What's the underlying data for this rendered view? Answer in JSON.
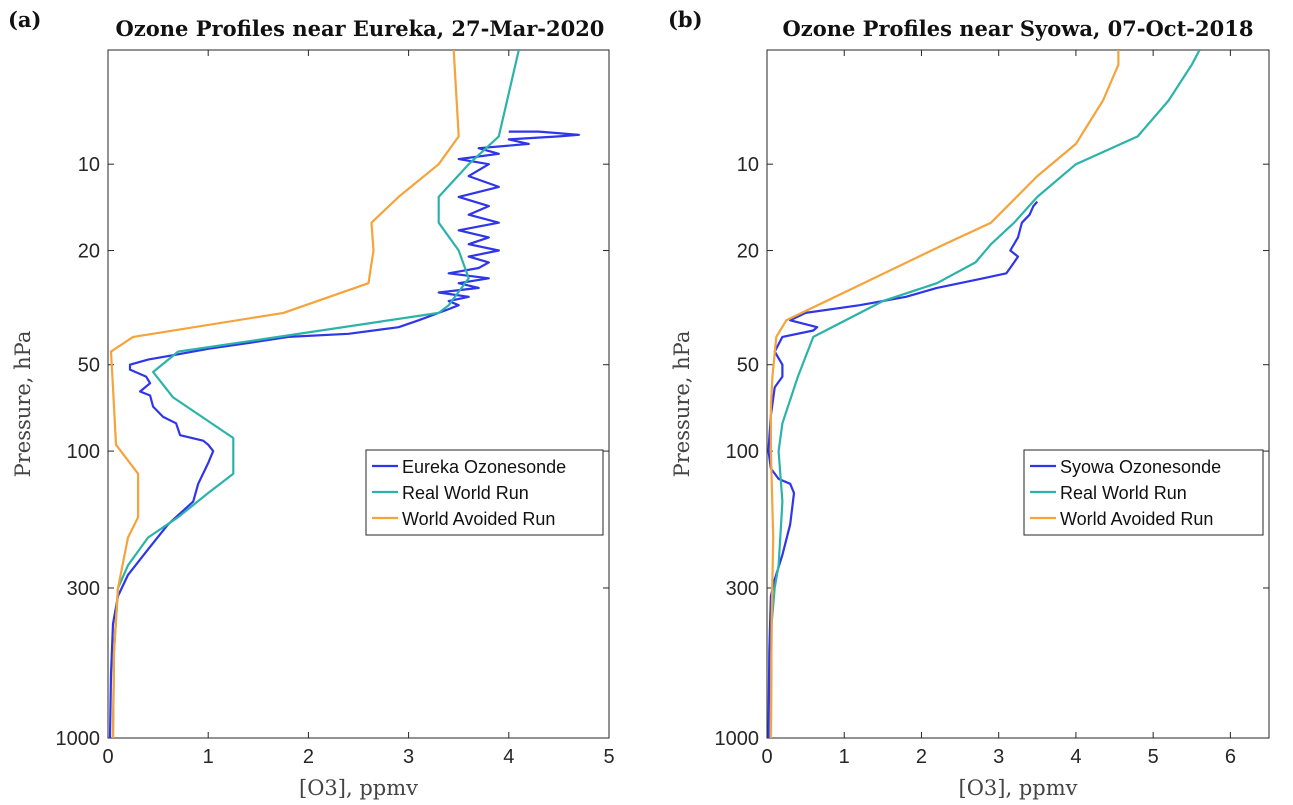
{
  "chart_data": [
    {
      "panel_label": "(a)",
      "type": "line",
      "title": "Ozone Profiles near Eureka, 27-Mar-2020",
      "xlabel": "[O3], ppmv",
      "ylabel": "Pressure, hPa",
      "xlim": [
        0,
        5
      ],
      "ylim": [
        4,
        1000
      ],
      "yscale": "log",
      "y_reversed": true,
      "xticks": [
        0,
        1,
        2,
        3,
        4,
        5
      ],
      "yticks": [
        10,
        20,
        50,
        100,
        300,
        1000
      ],
      "grid": false,
      "legend_position": "lower-right",
      "series": [
        {
          "name": "Eureka Ozonesonde",
          "color": "#2f35e8",
          "points": [
            [
              0.02,
              1000
            ],
            [
              0.03,
              600
            ],
            [
              0.05,
              400
            ],
            [
              0.1,
              320
            ],
            [
              0.2,
              270
            ],
            [
              0.4,
              220
            ],
            [
              0.6,
              180
            ],
            [
              0.85,
              150
            ],
            [
              0.9,
              130
            ],
            [
              1.0,
              110
            ],
            [
              1.05,
              100
            ],
            [
              1.0,
              95
            ],
            [
              0.95,
              92
            ],
            [
              0.72,
              88
            ],
            [
              0.68,
              80
            ],
            [
              0.55,
              76
            ],
            [
              0.45,
              70
            ],
            [
              0.42,
              64
            ],
            [
              0.32,
              62
            ],
            [
              0.42,
              58
            ],
            [
              0.38,
              55
            ],
            [
              0.22,
              52
            ],
            [
              0.22,
              50
            ],
            [
              0.4,
              48
            ],
            [
              0.7,
              46
            ],
            [
              1.0,
              44
            ],
            [
              1.4,
              42
            ],
            [
              1.8,
              40
            ],
            [
              2.4,
              39
            ],
            [
              2.9,
              37
            ],
            [
              3.1,
              35
            ],
            [
              3.3,
              33
            ],
            [
              3.4,
              32
            ],
            [
              3.5,
              31
            ],
            [
              3.4,
              30
            ],
            [
              3.6,
              29
            ],
            [
              3.3,
              28
            ],
            [
              3.7,
              27
            ],
            [
              3.5,
              26
            ],
            [
              3.8,
              25
            ],
            [
              3.4,
              24
            ],
            [
              3.7,
              23
            ],
            [
              3.8,
              22
            ],
            [
              3.6,
              21
            ],
            [
              3.9,
              20
            ],
            [
              3.6,
              19
            ],
            [
              3.8,
              18
            ],
            [
              3.5,
              17
            ],
            [
              3.9,
              16
            ],
            [
              3.6,
              15
            ],
            [
              3.8,
              14
            ],
            [
              3.5,
              13
            ],
            [
              3.9,
              12
            ],
            [
              3.6,
              11
            ],
            [
              3.8,
              10
            ],
            [
              3.5,
              9.6
            ],
            [
              3.9,
              9.2
            ],
            [
              3.7,
              8.8
            ],
            [
              4.2,
              8.5
            ],
            [
              4.0,
              8.2
            ],
            [
              4.5,
              8.0
            ],
            [
              4.7,
              7.9
            ],
            [
              4.3,
              7.7
            ],
            [
              4.0,
              7.7
            ]
          ]
        },
        {
          "name": "Real World Run",
          "color": "#2bb3aa",
          "points": [
            [
              0.05,
              1000
            ],
            [
              0.06,
              500
            ],
            [
              0.1,
              300
            ],
            [
              0.2,
              250
            ],
            [
              0.4,
              200
            ],
            [
              0.7,
              170
            ],
            [
              1.0,
              140
            ],
            [
              1.25,
              120
            ],
            [
              1.25,
              90
            ],
            [
              0.65,
              65
            ],
            [
              0.45,
              53
            ],
            [
              0.7,
              45
            ],
            [
              1.7,
              40
            ],
            [
              3.3,
              33
            ],
            [
              3.4,
              31
            ],
            [
              3.6,
              25
            ],
            [
              3.5,
              20
            ],
            [
              3.3,
              16
            ],
            [
              3.3,
              13
            ],
            [
              3.6,
              10
            ],
            [
              3.9,
              8
            ],
            [
              4.1,
              4
            ]
          ]
        },
        {
          "name": "World Avoided Run",
          "color": "#f5a33a",
          "points": [
            [
              0.05,
              1000
            ],
            [
              0.06,
              500
            ],
            [
              0.1,
              300
            ],
            [
              0.2,
              200
            ],
            [
              0.3,
              170
            ],
            [
              0.3,
              120
            ],
            [
              0.08,
              95
            ],
            [
              0.05,
              60
            ],
            [
              0.03,
              45
            ],
            [
              0.25,
              40
            ],
            [
              1.75,
              33
            ],
            [
              2.6,
              26
            ],
            [
              2.65,
              20
            ],
            [
              2.63,
              16
            ],
            [
              2.9,
              13
            ],
            [
              3.3,
              10
            ],
            [
              3.5,
              8
            ],
            [
              3.45,
              4
            ]
          ]
        }
      ]
    },
    {
      "panel_label": "(b)",
      "type": "line",
      "title": "Ozone Profiles near Syowa, 07-Oct-2018",
      "xlabel": "[O3], ppmv",
      "ylabel": "Pressure, hPa",
      "xlim": [
        0,
        6.5
      ],
      "ylim": [
        4,
        1000
      ],
      "yscale": "log",
      "y_reversed": true,
      "xticks": [
        0,
        1,
        2,
        3,
        4,
        5,
        6
      ],
      "yticks": [
        10,
        20,
        50,
        100,
        300,
        1000
      ],
      "grid": false,
      "legend_position": "lower-right",
      "series": [
        {
          "name": "Syowa Ozonesonde",
          "color": "#2f35e8",
          "points": [
            [
              0.02,
              1000
            ],
            [
              0.03,
              500
            ],
            [
              0.05,
              320
            ],
            [
              0.1,
              280
            ],
            [
              0.2,
              230
            ],
            [
              0.3,
              180
            ],
            [
              0.35,
              140
            ],
            [
              0.3,
              130
            ],
            [
              0.15,
              125
            ],
            [
              0.05,
              115
            ],
            [
              0.02,
              100
            ],
            [
              0.03,
              90
            ],
            [
              0.05,
              75
            ],
            [
              0.1,
              60
            ],
            [
              0.2,
              55
            ],
            [
              0.2,
              50
            ],
            [
              0.1,
              45
            ],
            [
              0.2,
              40
            ],
            [
              0.6,
              38
            ],
            [
              0.65,
              37
            ],
            [
              0.3,
              35
            ],
            [
              0.5,
              33
            ],
            [
              1.2,
              31
            ],
            [
              1.8,
              29
            ],
            [
              2.2,
              27
            ],
            [
              2.8,
              25
            ],
            [
              3.1,
              24
            ],
            [
              3.2,
              22
            ],
            [
              3.25,
              21
            ],
            [
              3.15,
              20
            ],
            [
              3.25,
              18
            ],
            [
              3.3,
              16
            ],
            [
              3.4,
              15
            ],
            [
              3.45,
              14
            ],
            [
              3.5,
              13.5
            ]
          ]
        },
        {
          "name": "Real World Run",
          "color": "#2bb3aa",
          "points": [
            [
              0.05,
              1000
            ],
            [
              0.06,
              400
            ],
            [
              0.1,
              300
            ],
            [
              0.15,
              250
            ],
            [
              0.2,
              150
            ],
            [
              0.15,
              100
            ],
            [
              0.2,
              80
            ],
            [
              0.4,
              55
            ],
            [
              0.6,
              40
            ],
            [
              1.5,
              30
            ],
            [
              2.2,
              26
            ],
            [
              2.7,
              22
            ],
            [
              2.9,
              19
            ],
            [
              3.2,
              16
            ],
            [
              3.5,
              13
            ],
            [
              4.0,
              10
            ],
            [
              4.8,
              8
            ],
            [
              5.2,
              6
            ],
            [
              5.5,
              4.5
            ],
            [
              5.6,
              4
            ]
          ]
        },
        {
          "name": "World Avoided Run",
          "color": "#f5a33a",
          "points": [
            [
              0.05,
              1000
            ],
            [
              0.06,
              400
            ],
            [
              0.08,
              200
            ],
            [
              0.05,
              100
            ],
            [
              0.05,
              70
            ],
            [
              0.07,
              55
            ],
            [
              0.12,
              40
            ],
            [
              0.25,
              35
            ],
            [
              1.0,
              28
            ],
            [
              2.3,
              19
            ],
            [
              2.9,
              16
            ],
            [
              3.5,
              11
            ],
            [
              4.0,
              8.5
            ],
            [
              4.35,
              6
            ],
            [
              4.55,
              4.5
            ],
            [
              4.55,
              4
            ]
          ]
        }
      ]
    }
  ]
}
